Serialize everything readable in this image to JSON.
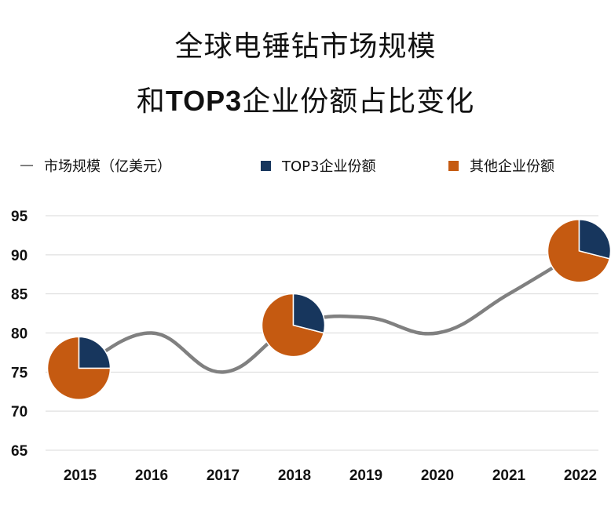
{
  "title_line1": "全球电锤钻市场规模",
  "title_line2_prefix": "和",
  "title_line2_bold": "TOP3",
  "title_line2_suffix": "企业份额占比变化",
  "legend": {
    "line_label": "市场规模（亿美元）",
    "top3_label": "TOP3企业份额",
    "other_label": "其他企业份额"
  },
  "colors": {
    "line": "#808080",
    "top3": "#17365D",
    "other": "#C55A11",
    "grid": "#D9D9D9"
  },
  "chart_data": {
    "type": "line",
    "title": "全球电锤钻市场规模和TOP3企业份额占比变化",
    "xlabel": "",
    "ylabel": "",
    "ylim": [
      65,
      95
    ],
    "yticks": [
      65,
      70,
      75,
      80,
      85,
      90,
      95
    ],
    "categories": [
      "2015",
      "2016",
      "2017",
      "2018",
      "2019",
      "2020",
      "2021",
      "2022"
    ],
    "series": [
      {
        "name": "市场规模（亿美元）",
        "values": [
          75.5,
          80,
          75,
          81,
          82,
          80,
          85,
          90.5
        ]
      }
    ],
    "pies": [
      {
        "year": "2015",
        "top3_share": 0.25,
        "other_share": 0.75
      },
      {
        "year": "2018",
        "top3_share": 0.29,
        "other_share": 0.71
      },
      {
        "year": "2022",
        "top3_share": 0.29,
        "other_share": 0.71
      }
    ]
  }
}
